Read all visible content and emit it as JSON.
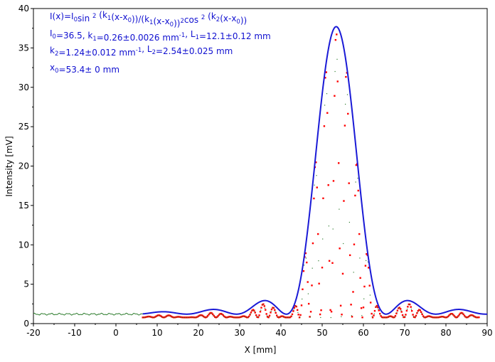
{
  "chart_data": {
    "type": "line",
    "xlabel": "X [mm]",
    "ylabel": "Intensity [mV]",
    "xlim": [
      -20,
      90
    ],
    "ylim": [
      0,
      40
    ],
    "x_ticks": [
      -20,
      -10,
      0,
      10,
      20,
      30,
      40,
      50,
      60,
      70,
      80,
      90
    ],
    "y_ticks": [
      0,
      5,
      10,
      15,
      20,
      25,
      30,
      35,
      40
    ],
    "grid": false,
    "colors": {
      "fit": "#1a1ad6",
      "measured_scatter": "#ff0000",
      "baseline": "#2e7d2e",
      "text": "#1010d0"
    },
    "fit_equation": {
      "line1": [
        {
          "t": "I(x)=I"
        },
        {
          "t": "0",
          "sub": true
        },
        {
          "t": "sin "
        },
        {
          "t": "2",
          "sup": true
        },
        {
          "t": " (k"
        },
        {
          "t": "1",
          "sub": true
        },
        {
          "t": "(x-x"
        },
        {
          "t": "0",
          "sub": true
        },
        {
          "t": "))/(k"
        },
        {
          "t": "1",
          "sub": true
        },
        {
          "t": "(x-x"
        },
        {
          "t": "0",
          "sub": true
        },
        {
          "t": "))"
        },
        {
          "t": "2",
          "sup": true
        },
        {
          "t": "cos "
        },
        {
          "t": "2",
          "sup": true
        },
        {
          "t": " (k"
        },
        {
          "t": "2",
          "sub": true
        },
        {
          "t": "(x-x"
        },
        {
          "t": "0",
          "sub": true
        },
        {
          "t": "))"
        }
      ],
      "line2": [
        {
          "t": "I"
        },
        {
          "t": "0",
          "sub": true
        },
        {
          "t": "=36.5,  k"
        },
        {
          "t": "1",
          "sub": true
        },
        {
          "t": "=0.26±0.0026 mm"
        },
        {
          "t": "-1",
          "sup": true
        },
        {
          "t": ",   L"
        },
        {
          "t": "1",
          "sub": true
        },
        {
          "t": "=12.1±0.12 mm"
        }
      ],
      "line3": [
        {
          "t": "k"
        },
        {
          "t": "2",
          "sub": true
        },
        {
          "t": "=1.24±0.012 mm"
        },
        {
          "t": "-1",
          "sup": true
        },
        {
          "t": ",   L"
        },
        {
          "t": "2",
          "sub": true
        },
        {
          "t": "=2.54±0.025 mm"
        }
      ],
      "line4": [
        {
          "t": "x"
        },
        {
          "t": "0",
          "sub": true
        },
        {
          "t": "=53.4±  0 mm"
        }
      ]
    },
    "fit_params": {
      "I0": 36.5,
      "k1": 0.26,
      "k2": 1.24,
      "x0": 53.4,
      "background": 1.2
    },
    "series": [
      {
        "kind": "baseline",
        "x_range": [
          -20,
          6.5
        ],
        "value": 1.2
      },
      {
        "kind": "fit",
        "x_range": [
          6.5,
          90
        ]
      },
      {
        "kind": "measured",
        "x_range": [
          6.5,
          88
        ],
        "step": 0.25
      }
    ]
  }
}
